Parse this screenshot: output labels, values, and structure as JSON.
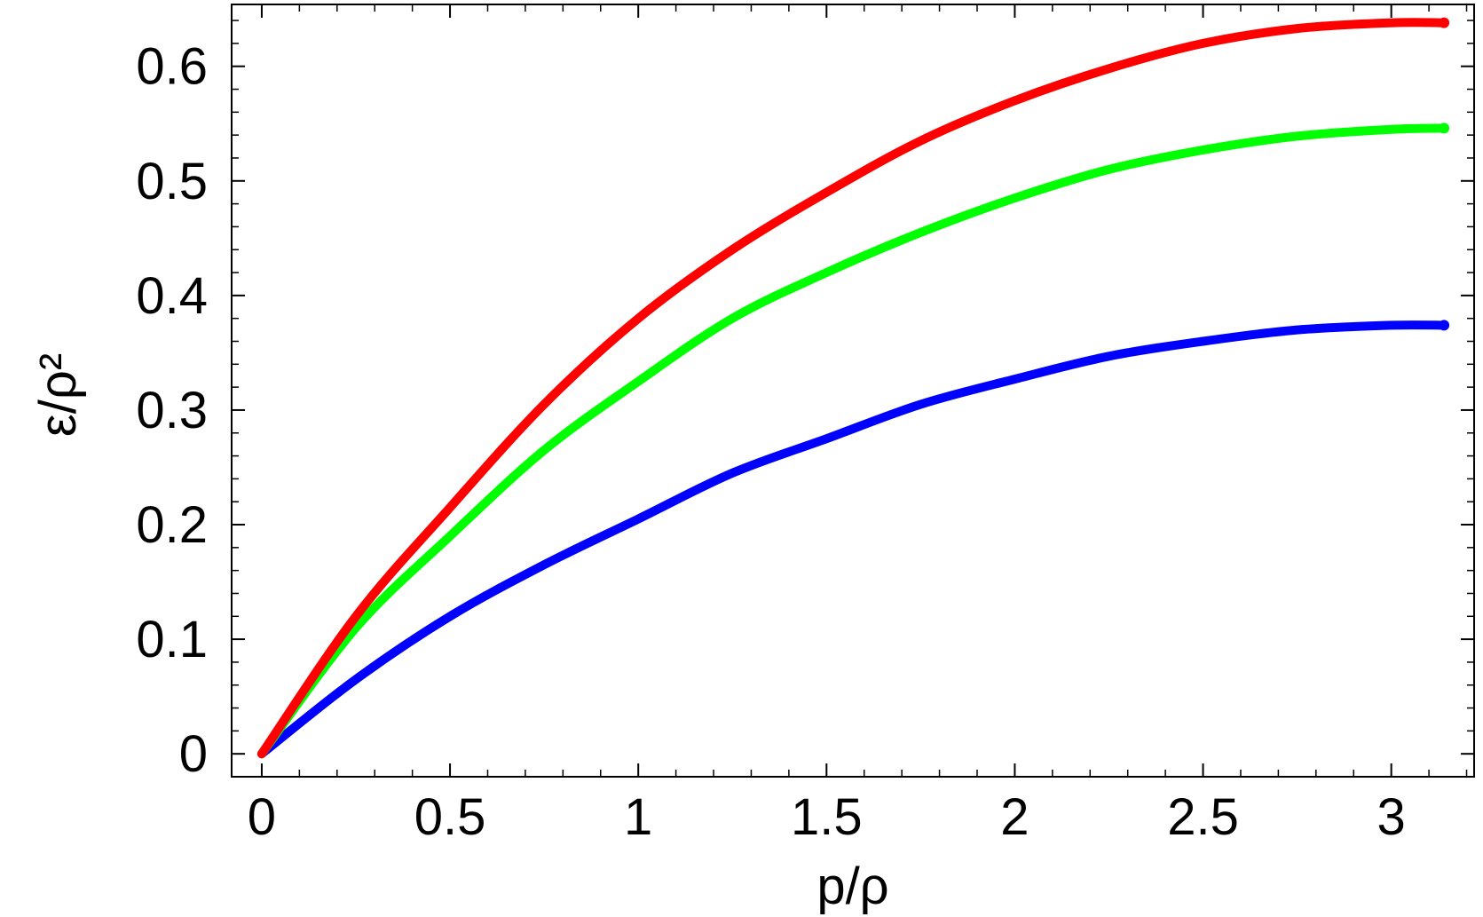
{
  "chart_data": {
    "type": "scatter",
    "xlabel": "p/ρ",
    "ylabel": "ε/ρ²",
    "xlim": [
      -0.08,
      3.22
    ],
    "ylim": [
      -0.02,
      0.654
    ],
    "xticks": [
      0,
      0.5,
      1,
      1.5,
      2,
      2.5,
      3
    ],
    "xtick_labels": [
      "0",
      "0.5",
      "1",
      "1.5",
      "2",
      "2.5",
      "3"
    ],
    "yticks": [
      0,
      0.1,
      0.2,
      0.3,
      0.4,
      0.5,
      0.6
    ],
    "ytick_labels": [
      "0",
      "0.1",
      "0.2",
      "0.3",
      "0.4",
      "0.5",
      "0.6"
    ],
    "grid": false,
    "x": [
      0,
      0.25,
      0.5,
      0.75,
      1,
      1.25,
      1.5,
      1.75,
      2,
      2.25,
      2.5,
      2.75,
      3,
      3.14
    ],
    "series": [
      {
        "color": "#ff0000",
        "values": [
          0,
          0.12,
          0.215,
          0.305,
          0.38,
          0.44,
          0.49,
          0.535,
          0.57,
          0.598,
          0.62,
          0.633,
          0.638,
          0.638
        ]
      },
      {
        "color": "#00ff00",
        "values": [
          0,
          0.11,
          0.19,
          0.265,
          0.325,
          0.38,
          0.42,
          0.455,
          0.485,
          0.51,
          0.527,
          0.539,
          0.545,
          0.546
        ]
      },
      {
        "color": "#0000ff",
        "values": [
          0,
          0.065,
          0.12,
          0.165,
          0.205,
          0.245,
          0.275,
          0.305,
          0.327,
          0.347,
          0.36,
          0.37,
          0.374,
          0.374
        ]
      }
    ]
  }
}
